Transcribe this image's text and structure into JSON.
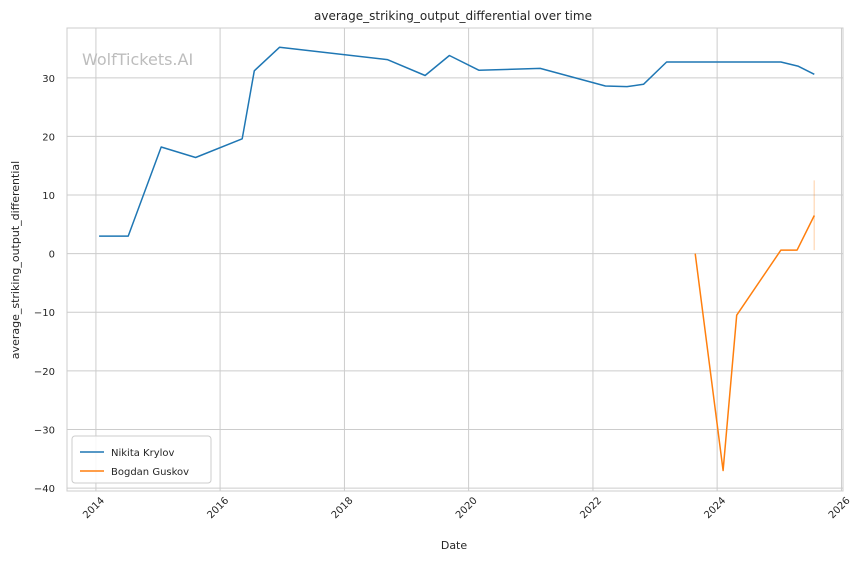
{
  "chart_data": {
    "type": "line",
    "title": "average_striking_output_differential over time",
    "xlabel": "Date",
    "ylabel": "average_striking_output_differential",
    "watermark": "WolfTickets.AI",
    "x_ticks": [
      "2014",
      "2016",
      "2018",
      "2020",
      "2022",
      "2024",
      "2026"
    ],
    "y_ticks": [
      -40,
      -30,
      -20,
      -10,
      0,
      10,
      20,
      30
    ],
    "xlim": [
      "2013-07-15",
      "2026-01-10"
    ],
    "ylim": [
      -40.5,
      38.5
    ],
    "grid": true,
    "legend_position": "lower-left",
    "series": [
      {
        "name": "Nikita Krylov",
        "color": "#1f77b4",
        "points": [
          [
            "2014-01-20",
            3.0
          ],
          [
            "2014-07-10",
            3.0
          ],
          [
            "2015-01-20",
            18.2
          ],
          [
            "2015-08-10",
            16.4
          ],
          [
            "2016-05-10",
            19.6
          ],
          [
            "2016-07-20",
            31.2
          ],
          [
            "2016-12-15",
            35.2
          ],
          [
            "2018-09-10",
            33.1
          ],
          [
            "2019-04-20",
            30.4
          ],
          [
            "2019-09-10",
            33.8
          ],
          [
            "2020-03-01",
            31.3
          ],
          [
            "2021-02-25",
            31.6
          ],
          [
            "2022-03-15",
            28.6
          ],
          [
            "2022-07-20",
            28.5
          ],
          [
            "2022-10-25",
            28.9
          ],
          [
            "2023-03-10",
            32.7
          ],
          [
            "2025-01-10",
            32.7
          ],
          [
            "2025-04-20",
            32.0
          ],
          [
            "2025-07-25",
            30.6
          ]
        ]
      },
      {
        "name": "Bogdan Guskov",
        "color": "#ff7f0e",
        "points": [
          [
            "2023-08-25",
            0.0
          ],
          [
            "2024-02-05",
            -37.0
          ],
          [
            "2024-04-25",
            -10.5
          ],
          [
            "2025-01-10",
            0.6
          ],
          [
            "2025-04-15",
            0.6
          ],
          [
            "2025-07-25",
            6.5
          ]
        ]
      }
    ]
  }
}
